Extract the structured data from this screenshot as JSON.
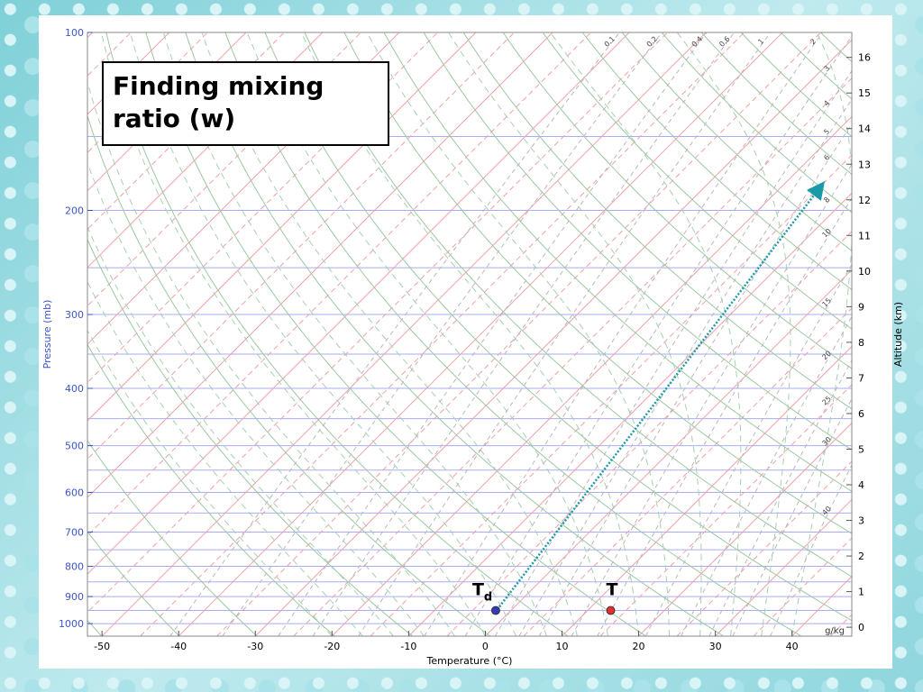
{
  "chart_data": {
    "type": "skew-t",
    "title": "Finding mixing ratio (w)",
    "x_label": "Temperature (°C)",
    "y_label": "Pressure (mb)",
    "y2_label": "Altitude (km)",
    "xlim": [
      -51.9,
      47.8
    ],
    "xticks": [
      -50,
      -40,
      -30,
      -20,
      -10,
      0,
      10,
      20,
      30,
      40
    ],
    "ylim": [
      1050,
      100
    ],
    "log_y": true,
    "yticks": [
      100,
      200,
      300,
      400,
      500,
      600,
      700,
      800,
      900,
      1000
    ],
    "y2lim": [
      -0.25,
      16.7
    ],
    "y2ticks": [
      0,
      1,
      2,
      3,
      4,
      5,
      6,
      7,
      8,
      9,
      10,
      11,
      12,
      13,
      14,
      15,
      16
    ],
    "grid": true,
    "mixing_ratio_labels": [
      0.1,
      0.2,
      0.4,
      0.6,
      1,
      2,
      3,
      4,
      5,
      6,
      8,
      10,
      15,
      20,
      25,
      30,
      40
    ],
    "mixing_ratio_unit": "g/kg",
    "points": [
      {
        "label": "T",
        "subscript": "d",
        "temperature": -2,
        "pressure": 950,
        "color": "#3a3ab8"
      },
      {
        "label": "T",
        "temperature": 13,
        "pressure": 950,
        "color": "#e53030"
      }
    ]
  }
}
